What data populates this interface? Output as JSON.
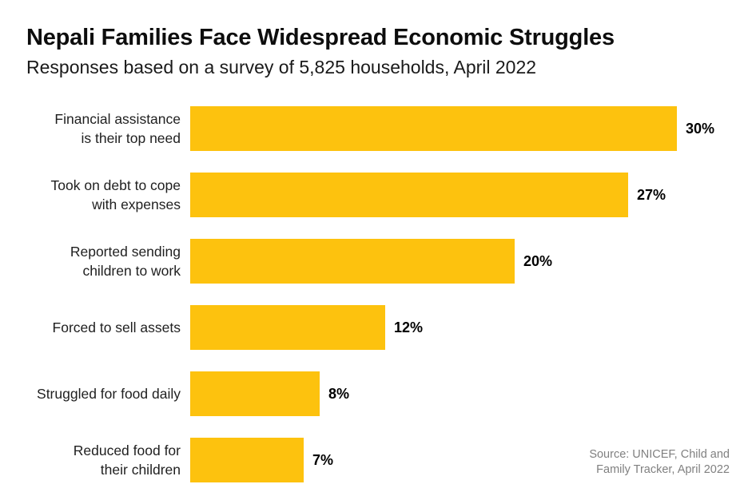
{
  "header": {
    "title": "Nepali Families Face Widespread Economic Struggles",
    "subtitle": "Responses based on a survey of 5,825 households, April 2022"
  },
  "chart_data": {
    "type": "bar",
    "orientation": "horizontal",
    "title": "Nepali Families Face Widespread Economic Struggles",
    "subtitle": "Responses based on a survey of 5,825 households, April 2022",
    "categories": [
      "Financial assistance is their top need",
      "Took on debt to cope with expenses",
      "Reported sending children to work",
      "Forced to sell assets",
      "Struggled for food daily",
      "Reduced food for their children"
    ],
    "category_lines": [
      [
        "Financial assistance",
        "is their top need"
      ],
      [
        "Took on debt to cope",
        "with expenses"
      ],
      [
        "Reported sending",
        "children to work"
      ],
      [
        "Forced to sell assets"
      ],
      [
        "Struggled for food daily"
      ],
      [
        "Reduced food for",
        "their children"
      ]
    ],
    "values": [
      30,
      27,
      20,
      12,
      8,
      7
    ],
    "value_labels": [
      "30%",
      "27%",
      "20%",
      "12%",
      "8%",
      "7%"
    ],
    "unit": "percent",
    "xlim": [
      0,
      30
    ],
    "grid": false,
    "legend": null,
    "bar_color": "#FDC20E",
    "value_label_color": "#000000",
    "category_label_color": "#1f1f1f"
  },
  "footer": {
    "source_line1": "Source: UNICEF, Child and",
    "source_line2": "Family Tracker, April 2022"
  }
}
